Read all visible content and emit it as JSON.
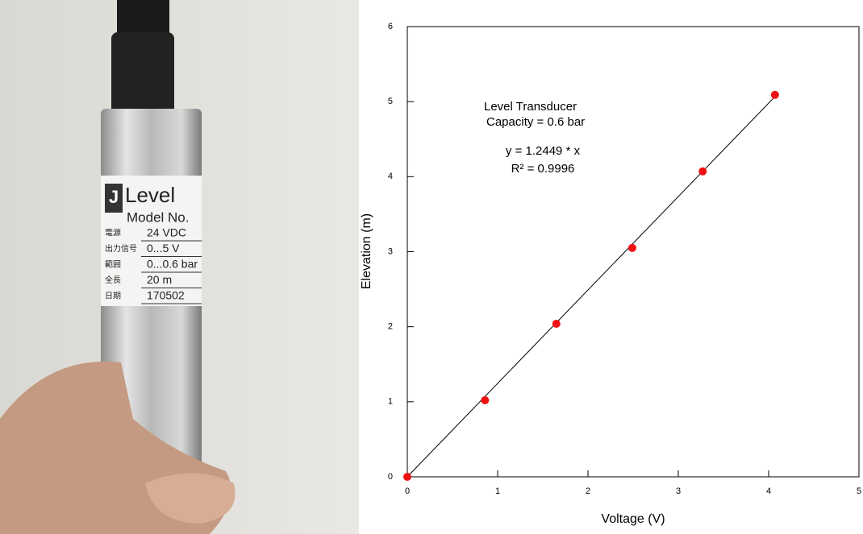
{
  "photo": {
    "brand": "J",
    "title": "Level",
    "model": "Model No.",
    "rows": [
      [
        "電源",
        "24 VDC"
      ],
      [
        "出力信号",
        "0...5 V"
      ],
      [
        "範囲",
        "0...0.6 bar"
      ],
      [
        "全長",
        "20 m"
      ],
      [
        "日期",
        "170502"
      ]
    ]
  },
  "chart_data": {
    "type": "scatter",
    "x": [
      0,
      0.86,
      1.65,
      2.49,
      3.27,
      4.07
    ],
    "values": [
      0,
      1.02,
      2.04,
      3.05,
      4.07,
      5.09
    ],
    "color": "#ee1111",
    "xlabel": "Voltage (V)",
    "ylabel": "Elevation (m)",
    "xlim": [
      0,
      5
    ],
    "ylim": [
      0,
      6
    ],
    "xticks": [
      0,
      1,
      2,
      3,
      4,
      5
    ],
    "yticks": [
      0,
      1,
      2,
      3,
      4,
      5,
      6
    ],
    "annotations": [
      "Level  Transducer",
      "Capacity =  0.6 bar",
      "y = 1.2449 * x",
      "R² = 0.9996"
    ],
    "fit": {
      "slope": 1.2449
    }
  }
}
